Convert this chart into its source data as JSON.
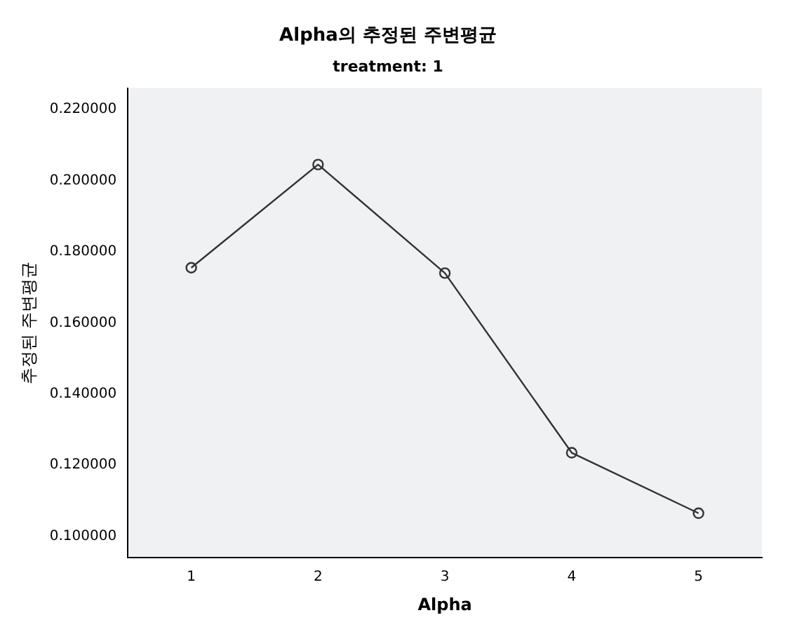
{
  "chart_data": {
    "type": "line",
    "title": "Alpha의 추정된 주변평균",
    "subtitle": "treatment: 1",
    "xlabel": "Alpha",
    "ylabel": "추정된 주변평균",
    "categories": [
      "1",
      "2",
      "3",
      "4",
      "5"
    ],
    "series": [
      {
        "color": "#333333",
        "values": [
          0.1755,
          0.2045,
          0.174,
          0.1235,
          0.1065
        ]
      }
    ],
    "ylim": [
      0.094,
      0.226
    ],
    "yticks": [
      {
        "value": 0.1,
        "label": "0.100000"
      },
      {
        "value": 0.12,
        "label": "0.120000"
      },
      {
        "value": 0.14,
        "label": "0.140000"
      },
      {
        "value": 0.16,
        "label": "0.160000"
      },
      {
        "value": 0.18,
        "label": "0.180000"
      },
      {
        "value": 0.2,
        "label": "0.200000"
      },
      {
        "value": 0.22,
        "label": "0.220000"
      }
    ],
    "grid": false,
    "legend": false,
    "marker": "circle",
    "line_style": "solid"
  }
}
